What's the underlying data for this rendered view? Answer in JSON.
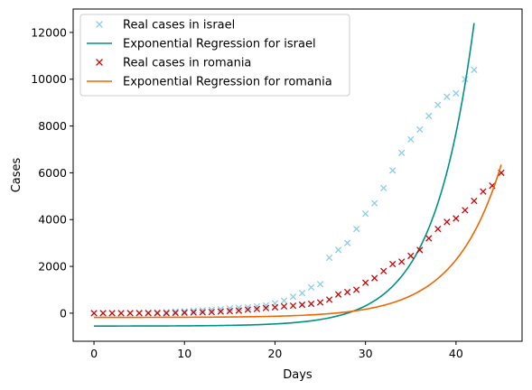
{
  "chart_data": {
    "type": "scatter",
    "xlabel": "Days",
    "ylabel": "Cases",
    "xlim": [
      -2.3,
      47.3
    ],
    "ylim": [
      -1200,
      13000
    ],
    "x_ticks": [
      0,
      10,
      20,
      30,
      40
    ],
    "y_ticks": [
      0,
      2000,
      4000,
      6000,
      8000,
      10000,
      12000
    ],
    "grid": false,
    "legend_position": "top-left",
    "series": [
      {
        "name": "Real cases in israel",
        "kind": "markers",
        "marker": "x",
        "color": "#87ceeb",
        "x": [
          0,
          1,
          2,
          3,
          4,
          5,
          6,
          7,
          8,
          9,
          10,
          11,
          12,
          13,
          14,
          15,
          16,
          17,
          18,
          19,
          20,
          21,
          22,
          23,
          24,
          25,
          26,
          27,
          28,
          29,
          30,
          31,
          32,
          33,
          34,
          35,
          36,
          37,
          38,
          39,
          40,
          41,
          42
        ],
        "y": [
          0,
          0,
          0,
          0,
          10,
          20,
          30,
          40,
          50,
          70,
          80,
          100,
          120,
          140,
          170,
          200,
          230,
          250,
          290,
          330,
          420,
          530,
          700,
          860,
          1100,
          1240,
          2370,
          2700,
          3000,
          3600,
          4250,
          4700,
          5350,
          6100,
          6850,
          7430,
          7850,
          8430,
          8900,
          9250,
          9400,
          10000,
          10400
        ]
      },
      {
        "name": "Exponential Regression for israel",
        "kind": "line",
        "color": "#009085",
        "x_start": 0,
        "x_end": 42,
        "y_start": -550,
        "y_end": 12400
      },
      {
        "name": "Real cases in romania",
        "kind": "markers",
        "marker": "x",
        "color": "#d40000",
        "x": [
          0,
          1,
          2,
          3,
          4,
          5,
          6,
          7,
          8,
          9,
          10,
          11,
          12,
          13,
          14,
          15,
          16,
          17,
          18,
          19,
          20,
          21,
          22,
          23,
          24,
          25,
          26,
          27,
          28,
          29,
          30,
          31,
          32,
          33,
          34,
          35,
          36,
          37,
          38,
          39,
          40,
          41,
          42,
          43,
          44,
          45
        ],
        "y": [
          0,
          0,
          0,
          0,
          0,
          0,
          0,
          0,
          0,
          10,
          20,
          30,
          40,
          50,
          70,
          90,
          110,
          150,
          180,
          220,
          250,
          290,
          320,
          360,
          400,
          460,
          580,
          800,
          900,
          1000,
          1300,
          1500,
          1800,
          2100,
          2200,
          2450,
          2700,
          3200,
          3600,
          3900,
          4050,
          4400,
          4800,
          5200,
          5450,
          6000
        ]
      },
      {
        "name": "Exponential Regression for romania",
        "kind": "line",
        "color": "#ee6600",
        "x_start": 0,
        "x_end": 45,
        "y_start": -180,
        "y_end": 6350
      }
    ]
  }
}
